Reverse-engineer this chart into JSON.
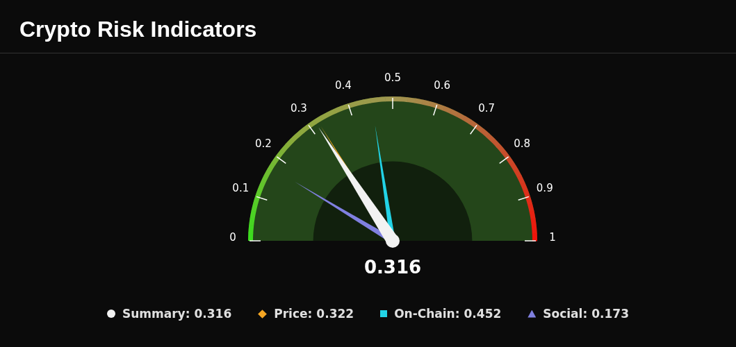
{
  "chart_data": {
    "type": "other",
    "title": "Crypto Risk Indicators",
    "legend": "bottom",
    "annotations": [
      "0",
      "0.1",
      "0.2",
      "0.3",
      "0.4",
      "0.5",
      "0.6",
      "0.7",
      "0.8",
      "0.9",
      "1",
      "0.316"
    ],
    "series": [
      {
        "name": "Summary:",
        "color": "#f2f2f2",
        "values": [
          0.316
        ],
        "value_labels": [
          "0.316"
        ],
        "marker": "circle"
      },
      {
        "name": "Price:",
        "color": "#f5a623",
        "values": [
          0.322
        ],
        "value_labels": [
          "0.322"
        ],
        "marker": "diamond"
      },
      {
        "name": "On-Chain:",
        "color": "#22d3e6",
        "values": [
          0.452
        ],
        "value_labels": [
          "0.452"
        ],
        "marker": "square"
      },
      {
        "name": "Social:",
        "color": "#8080e0",
        "values": [
          0.173
        ],
        "value_labels": [
          "0.173"
        ],
        "marker": "triangle"
      }
    ]
  }
}
